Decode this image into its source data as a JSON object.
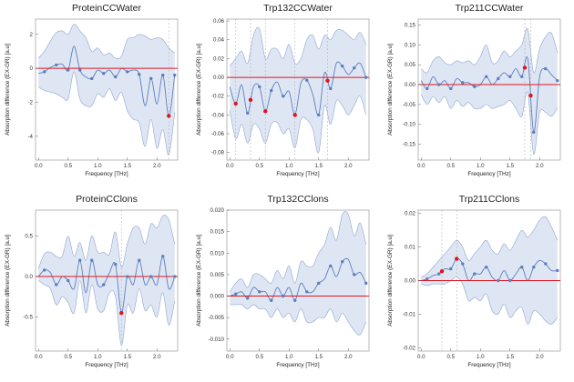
{
  "colors": {
    "band": "#d9e2f1",
    "band_edge": "#8ea5cf",
    "line": "#5b7fbf",
    "zero": "#e0141e",
    "marker": "#e0141e",
    "point": "#5b7fbf",
    "grid": "#b5b5b5"
  },
  "chart_data": [
    {
      "type": "line",
      "title": "ProteinCCWater",
      "xlabel": "Frequency [THz]",
      "ylabel": "Absorption difference (EX-GR) [a.u]",
      "xlim": [
        -0.05,
        2.35
      ],
      "ylim": [
        -5.4,
        2.9
      ],
      "xticks": [
        "0.0",
        "0.5",
        "1.0",
        "1.5",
        "2.0"
      ],
      "xtick_values": [
        0,
        0.5,
        1,
        1.5,
        2
      ],
      "yticks": [
        "-4",
        "-2",
        "0",
        "2"
      ],
      "ytick_values": [
        -4,
        -2,
        0,
        2
      ],
      "x": [
        0.0,
        0.1,
        0.2,
        0.3,
        0.4,
        0.5,
        0.6,
        0.7,
        0.8,
        0.9,
        1.0,
        1.1,
        1.2,
        1.3,
        1.4,
        1.5,
        1.6,
        1.7,
        1.8,
        1.9,
        2.0,
        2.1,
        2.2,
        2.3
      ],
      "mean": [
        -0.3,
        -0.2,
        0.05,
        0.2,
        0.25,
        -0.1,
        1.3,
        -0.1,
        -0.5,
        -0.6,
        -0.1,
        -0.3,
        -0.1,
        -0.5,
        0.0,
        -0.2,
        -0.1,
        -0.35,
        -2.2,
        -0.6,
        -2.1,
        -0.4,
        -2.8,
        -0.4
      ],
      "upper": [
        0.6,
        1.0,
        1.6,
        2.1,
        2.2,
        2.0,
        2.6,
        2.2,
        1.8,
        1.0,
        1.2,
        0.8,
        0.9,
        0.6,
        0.7,
        1.7,
        1.8,
        2.0,
        1.9,
        1.7,
        1.8,
        1.7,
        1.2,
        0.9
      ],
      "lower": [
        -1.1,
        -1.3,
        -1.4,
        -1.5,
        -1.7,
        -1.8,
        -0.2,
        -1.8,
        -2.2,
        -2.2,
        -1.5,
        -1.7,
        -1.2,
        -1.9,
        -1.4,
        -2.5,
        -3.0,
        -3.2,
        -4.6,
        -3.0,
        -4.7,
        -3.6,
        -5.1,
        -2.6
      ],
      "highlights": [
        2.2
      ]
    },
    {
      "type": "line",
      "title": "Trp132CCWater",
      "xlabel": "Frequency [THz]",
      "ylabel": "Absorption difference (EX-GR) [a.u]",
      "xlim": [
        -0.05,
        2.35
      ],
      "ylim": [
        -0.088,
        0.062
      ],
      "xticks": [
        "0.0",
        "0.5",
        "1.0",
        "1.5",
        "2.0"
      ],
      "xtick_values": [
        0,
        0.5,
        1,
        1.5,
        2
      ],
      "yticks": [
        "-0.08",
        "-0.06",
        "-0.04",
        "-0.02",
        "0.00",
        "0.02",
        "0.04",
        "0.06"
      ],
      "ytick_values": [
        -0.08,
        -0.06,
        -0.04,
        -0.02,
        0,
        0.02,
        0.04,
        0.06
      ],
      "x": [
        0.0,
        0.1,
        0.2,
        0.3,
        0.4,
        0.5,
        0.6,
        0.7,
        0.8,
        0.9,
        1.0,
        1.1,
        1.2,
        1.3,
        1.4,
        1.5,
        1.6,
        1.7,
        1.8,
        1.9,
        2.0,
        2.1,
        2.2,
        2.3
      ],
      "mean": [
        -0.01,
        -0.028,
        -0.008,
        -0.038,
        -0.01,
        -0.01,
        -0.036,
        -0.014,
        -0.005,
        -0.02,
        -0.015,
        -0.04,
        -0.006,
        -0.003,
        -0.018,
        -0.04,
        0.005,
        -0.012,
        0.015,
        0.012,
        0.003,
        0.01,
        0.015,
        0.0
      ],
      "upper": [
        0.012,
        0.02,
        0.028,
        0.015,
        0.045,
        0.052,
        0.02,
        0.03,
        0.03,
        0.02,
        0.035,
        0.015,
        0.02,
        0.04,
        0.045,
        0.03,
        0.045,
        0.04,
        0.05,
        0.05,
        0.045,
        0.04,
        0.048,
        0.035
      ],
      "lower": [
        -0.035,
        -0.065,
        -0.05,
        -0.07,
        -0.05,
        -0.055,
        -0.07,
        -0.05,
        -0.048,
        -0.06,
        -0.055,
        -0.075,
        -0.045,
        -0.045,
        -0.055,
        -0.08,
        -0.03,
        -0.05,
        -0.025,
        -0.03,
        -0.04,
        -0.03,
        -0.02,
        -0.04
      ],
      "highlights": [
        0.1,
        0.35,
        0.6,
        1.1,
        1.65
      ]
    },
    {
      "type": "line",
      "title": "Trp211CCWater",
      "xlabel": "Frequency [THz]",
      "ylabel": "Absorption difference (EX-GR) [a.u]",
      "xlim": [
        -0.05,
        2.35
      ],
      "ylim": [
        -0.19,
        0.165
      ],
      "xticks": [
        "0.0",
        "0.5",
        "1.0",
        "1.5",
        "2.0"
      ],
      "xtick_values": [
        0,
        0.5,
        1,
        1.5,
        2
      ],
      "yticks": [
        "-0.15",
        "-0.10",
        "-0.05",
        "0.00",
        "0.05",
        "0.10",
        "0.15"
      ],
      "ytick_values": [
        -0.15,
        -0.1,
        -0.05,
        0,
        0.05,
        0.1,
        0.15
      ],
      "x": [
        0.0,
        0.1,
        0.2,
        0.3,
        0.4,
        0.5,
        0.6,
        0.7,
        0.8,
        0.9,
        1.0,
        1.1,
        1.2,
        1.3,
        1.4,
        1.5,
        1.6,
        1.7,
        1.8,
        1.9,
        2.0,
        2.1,
        2.2,
        2.3
      ],
      "mean": [
        0.01,
        -0.01,
        0.02,
        0.0,
        0.01,
        -0.01,
        0.015,
        0.005,
        0.005,
        -0.005,
        0.0,
        0.02,
        0.0,
        0.015,
        0.03,
        0.02,
        0.04,
        0.02,
        0.065,
        -0.12,
        0.02,
        0.04,
        0.025,
        0.01
      ],
      "upper": [
        0.04,
        0.03,
        0.06,
        0.07,
        0.055,
        0.05,
        0.06,
        0.055,
        0.06,
        0.05,
        0.07,
        0.1,
        0.055,
        0.06,
        0.085,
        0.07,
        0.085,
        0.1,
        0.14,
        0.03,
        0.09,
        0.12,
        0.13,
        0.08
      ],
      "lower": [
        -0.025,
        -0.05,
        -0.03,
        -0.045,
        -0.03,
        -0.06,
        -0.04,
        -0.055,
        -0.045,
        -0.06,
        -0.06,
        -0.05,
        -0.06,
        -0.055,
        -0.05,
        -0.04,
        -0.06,
        -0.08,
        -0.02,
        -0.175,
        -0.07,
        -0.07,
        -0.08,
        -0.06
      ],
      "highlights": [
        1.75,
        1.85
      ]
    },
    {
      "type": "line",
      "title": "ProteinCClons",
      "xlabel": "Frequency [THz]",
      "ylabel": "Absorption difference (EX-GR) [a.u]",
      "xlim": [
        -0.05,
        2.35
      ],
      "ylim": [
        -0.92,
        0.82
      ],
      "xticks": [
        "0.0",
        "0.5",
        "1.0",
        "1.5",
        "2.0"
      ],
      "xtick_values": [
        0,
        0.5,
        1,
        1.5,
        2
      ],
      "yticks": [
        "-0.5",
        "0.0",
        "0.5"
      ],
      "ytick_values": [
        -0.5,
        0,
        0.5
      ],
      "x": [
        0.0,
        0.1,
        0.2,
        0.3,
        0.4,
        0.5,
        0.6,
        0.7,
        0.8,
        0.9,
        1.0,
        1.1,
        1.2,
        1.3,
        1.4,
        1.5,
        1.6,
        1.7,
        1.8,
        1.9,
        2.0,
        2.1,
        2.2,
        2.3
      ],
      "mean": [
        0.0,
        0.08,
        0.05,
        -0.1,
        0.0,
        -0.05,
        -0.15,
        0.2,
        -0.2,
        0.2,
        -0.1,
        -0.1,
        0.05,
        0.15,
        -0.45,
        0.0,
        -0.1,
        0.2,
        -0.1,
        0.0,
        -0.1,
        0.25,
        -0.15,
        0.0
      ],
      "upper": [
        0.1,
        0.28,
        0.3,
        0.25,
        0.25,
        0.5,
        0.25,
        0.42,
        0.2,
        0.5,
        0.3,
        0.3,
        0.28,
        0.55,
        0.12,
        0.4,
        0.6,
        0.6,
        0.4,
        0.65,
        0.6,
        0.75,
        0.7,
        0.4
      ],
      "lower": [
        -0.05,
        -0.1,
        -0.15,
        -0.35,
        -0.25,
        -0.32,
        -0.45,
        -0.05,
        -0.45,
        -0.1,
        -0.4,
        -0.42,
        -0.2,
        -0.25,
        -0.85,
        -0.35,
        -0.45,
        -0.15,
        -0.42,
        -0.35,
        -0.5,
        -0.2,
        -0.6,
        -0.3
      ],
      "highlights": [
        1.4
      ]
    },
    {
      "type": "line",
      "title": "Trp132CClons",
      "xlabel": "Frequency [THz]",
      "ylabel": "Absorption difference (EX-GR) [a.u]",
      "xlim": [
        -0.05,
        2.35
      ],
      "ylim": [
        -0.0128,
        0.02
      ],
      "xticks": [
        "0.0",
        "0.5",
        "1.0",
        "1.5",
        "2.0"
      ],
      "xtick_values": [
        0,
        0.5,
        1,
        1.5,
        2
      ],
      "yticks": [
        "-0.010",
        "-0.005",
        "0.000",
        "0.005",
        "0.010",
        "0.015",
        "0.020"
      ],
      "ytick_values": [
        -0.01,
        -0.005,
        0,
        0.005,
        0.01,
        0.015,
        0.02
      ],
      "x": [
        0.0,
        0.1,
        0.2,
        0.3,
        0.4,
        0.5,
        0.6,
        0.7,
        0.8,
        0.9,
        1.0,
        1.1,
        1.2,
        1.3,
        1.4,
        1.5,
        1.6,
        1.7,
        1.8,
        1.9,
        2.0,
        2.1,
        2.2,
        2.3
      ],
      "mean": [
        0.0,
        0.0005,
        0.001,
        -0.0005,
        0.002,
        0.001,
        0.001,
        -0.001,
        0.002,
        0.0,
        0.002,
        -0.001,
        0.003,
        0.001,
        0.001,
        0.003,
        0.004,
        0.007,
        0.0045,
        0.008,
        0.0085,
        0.005,
        0.0055,
        0.003
      ],
      "upper": [
        0.001,
        0.003,
        0.004,
        0.002,
        0.005,
        0.005,
        0.004,
        0.003,
        0.006,
        0.004,
        0.007,
        0.003,
        0.008,
        0.007,
        0.007,
        0.01,
        0.012,
        0.016,
        0.013,
        0.019,
        0.019,
        0.014,
        0.017,
        0.012
      ],
      "lower": [
        -0.002,
        -0.002,
        -0.002,
        -0.003,
        -0.002,
        -0.003,
        -0.003,
        -0.005,
        -0.003,
        -0.005,
        -0.004,
        -0.006,
        -0.003,
        -0.006,
        -0.006,
        -0.005,
        -0.005,
        -0.003,
        -0.006,
        -0.004,
        -0.006,
        -0.008,
        -0.009,
        -0.006
      ],
      "highlights": []
    },
    {
      "type": "line",
      "title": "Trp211CClons",
      "xlabel": "Frequency [THz]",
      "ylabel": "Absorption difference (EX-GR) [a.u]",
      "xlim": [
        -0.05,
        2.35
      ],
      "ylim": [
        -0.021,
        0.021
      ],
      "xticks": [
        "0.0",
        "0.5",
        "1.0",
        "1.5",
        "2.0"
      ],
      "xtick_values": [
        0,
        0.5,
        1,
        1.5,
        2
      ],
      "yticks": [
        "-0.02",
        "-0.01",
        "0.00",
        "0.01",
        "0.02"
      ],
      "ytick_values": [
        -0.02,
        -0.01,
        0,
        0.01,
        0.02
      ],
      "x": [
        0.0,
        0.1,
        0.2,
        0.3,
        0.4,
        0.5,
        0.6,
        0.7,
        0.8,
        0.9,
        1.0,
        1.1,
        1.2,
        1.3,
        1.4,
        1.5,
        1.6,
        1.7,
        1.8,
        1.9,
        2.0,
        2.1,
        2.2,
        2.3
      ],
      "mean": [
        0.0,
        0.0005,
        0.0015,
        0.002,
        0.0035,
        0.0035,
        0.0065,
        0.005,
        0.0,
        0.002,
        0.002,
        0.004,
        0.001,
        0.0,
        0.003,
        0.0,
        0.002,
        0.004,
        0.0,
        0.004,
        0.006,
        0.005,
        0.003,
        0.003
      ],
      "upper": [
        0.001,
        0.002,
        0.004,
        0.006,
        0.008,
        0.01,
        0.012,
        0.01,
        0.006,
        0.008,
        0.01,
        0.012,
        0.009,
        0.008,
        0.011,
        0.009,
        0.012,
        0.015,
        0.013,
        0.015,
        0.018,
        0.019,
        0.016,
        0.012
      ],
      "lower": [
        -0.001,
        -0.0015,
        -0.001,
        -0.001,
        -0.001,
        0.0,
        0.001,
        -0.001,
        -0.006,
        -0.005,
        -0.006,
        -0.004,
        -0.009,
        -0.01,
        -0.007,
        -0.011,
        -0.009,
        -0.008,
        -0.013,
        -0.009,
        -0.01,
        -0.012,
        -0.013,
        -0.011
      ],
      "highlights": [
        0.35,
        0.6
      ]
    }
  ]
}
